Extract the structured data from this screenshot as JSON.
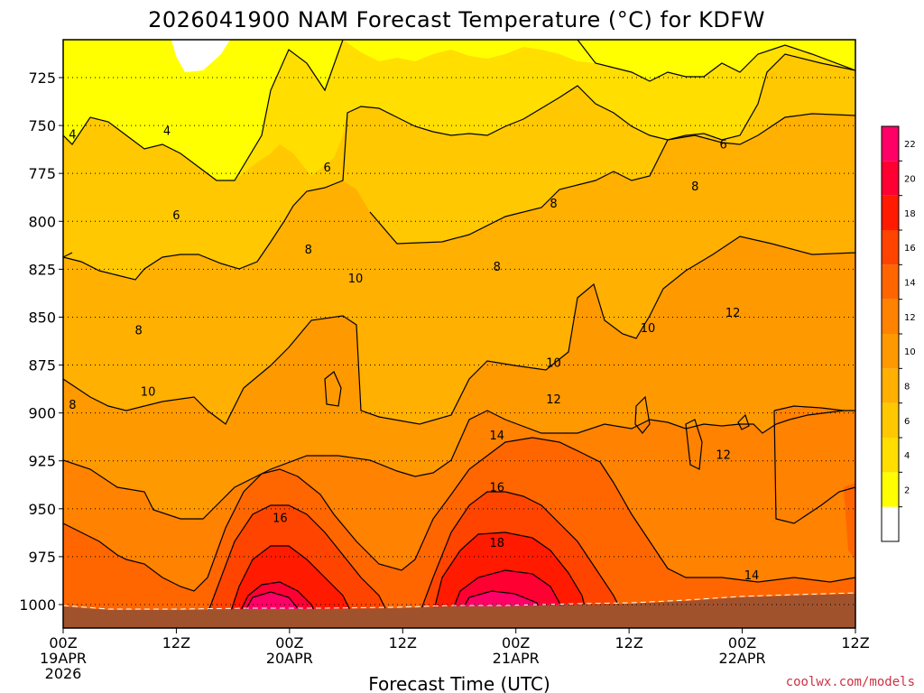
{
  "chart_data": {
    "type": "heatmap",
    "title": "2026041900 NAM Forecast Temperature (°C) for KDFW",
    "xlabel": "Forecast Time (UTC)",
    "ylabel": "",
    "x_ticks": [
      {
        "hour": 0,
        "lines": [
          "00Z",
          "19APR",
          "2026"
        ]
      },
      {
        "hour": 12,
        "lines": [
          "12Z"
        ]
      },
      {
        "hour": 24,
        "lines": [
          "00Z",
          "20APR"
        ]
      },
      {
        "hour": 36,
        "lines": [
          "12Z"
        ]
      },
      {
        "hour": 48,
        "lines": [
          "00Z",
          "21APR"
        ]
      },
      {
        "hour": 60,
        "lines": [
          "12Z"
        ]
      },
      {
        "hour": 72,
        "lines": [
          "00Z",
          "22APR"
        ]
      },
      {
        "hour": 84,
        "lines": [
          "12Z"
        ]
      }
    ],
    "xlim_hours": [
      0,
      84
    ],
    "y_ticks": [
      725,
      750,
      775,
      800,
      825,
      850,
      875,
      900,
      925,
      950,
      975,
      1000
    ],
    "ylim_hpa": [
      1012,
      704
    ],
    "grid": "dotted horizontal lines at each pressure tick",
    "colorbar": {
      "levels": [
        2,
        4,
        6,
        8,
        10,
        12,
        14,
        16,
        18,
        20,
        22
      ],
      "colors": [
        "#ffffff",
        "#ffff00",
        "#ffde00",
        "#ffc800",
        "#ffb000",
        "#ff9900",
        "#ff8200",
        "#ff6600",
        "#ff4400",
        "#ff1a00",
        "#ff0033",
        "#ff0066"
      ]
    },
    "terrain_color": "#a0522d",
    "contour_labels": [
      {
        "hour": 1,
        "hpa": 755,
        "text": "4"
      },
      {
        "hour": 11,
        "hpa": 753,
        "text": "4"
      },
      {
        "hour": 28,
        "hpa": 772,
        "text": "6"
      },
      {
        "hour": 12,
        "hpa": 797,
        "text": "6"
      },
      {
        "hour": 26,
        "hpa": 815,
        "text": "8"
      },
      {
        "hour": 8,
        "hpa": 857,
        "text": "8"
      },
      {
        "hour": 31,
        "hpa": 830,
        "text": "10"
      },
      {
        "hour": 9,
        "hpa": 889,
        "text": "10"
      },
      {
        "hour": 1,
        "hpa": 896,
        "text": "8"
      },
      {
        "hour": 23,
        "hpa": 955,
        "text": "16"
      },
      {
        "hour": 52,
        "hpa": 791,
        "text": "8"
      },
      {
        "hour": 46,
        "hpa": 824,
        "text": "8"
      },
      {
        "hour": 52,
        "hpa": 874,
        "text": "10"
      },
      {
        "hour": 52,
        "hpa": 893,
        "text": "12"
      },
      {
        "hour": 46,
        "hpa": 912,
        "text": "14"
      },
      {
        "hour": 46,
        "hpa": 939,
        "text": "16"
      },
      {
        "hour": 46,
        "hpa": 968,
        "text": "18"
      },
      {
        "hour": 70,
        "hpa": 760,
        "text": "6"
      },
      {
        "hour": 67,
        "hpa": 782,
        "text": "8"
      },
      {
        "hour": 62,
        "hpa": 856,
        "text": "10"
      },
      {
        "hour": 71,
        "hpa": 848,
        "text": "12"
      },
      {
        "hour": 70,
        "hpa": 922,
        "text": "12"
      },
      {
        "hour": 73,
        "hpa": 985,
        "text": "14"
      }
    ]
  },
  "watermark": "coolwx.com/models"
}
